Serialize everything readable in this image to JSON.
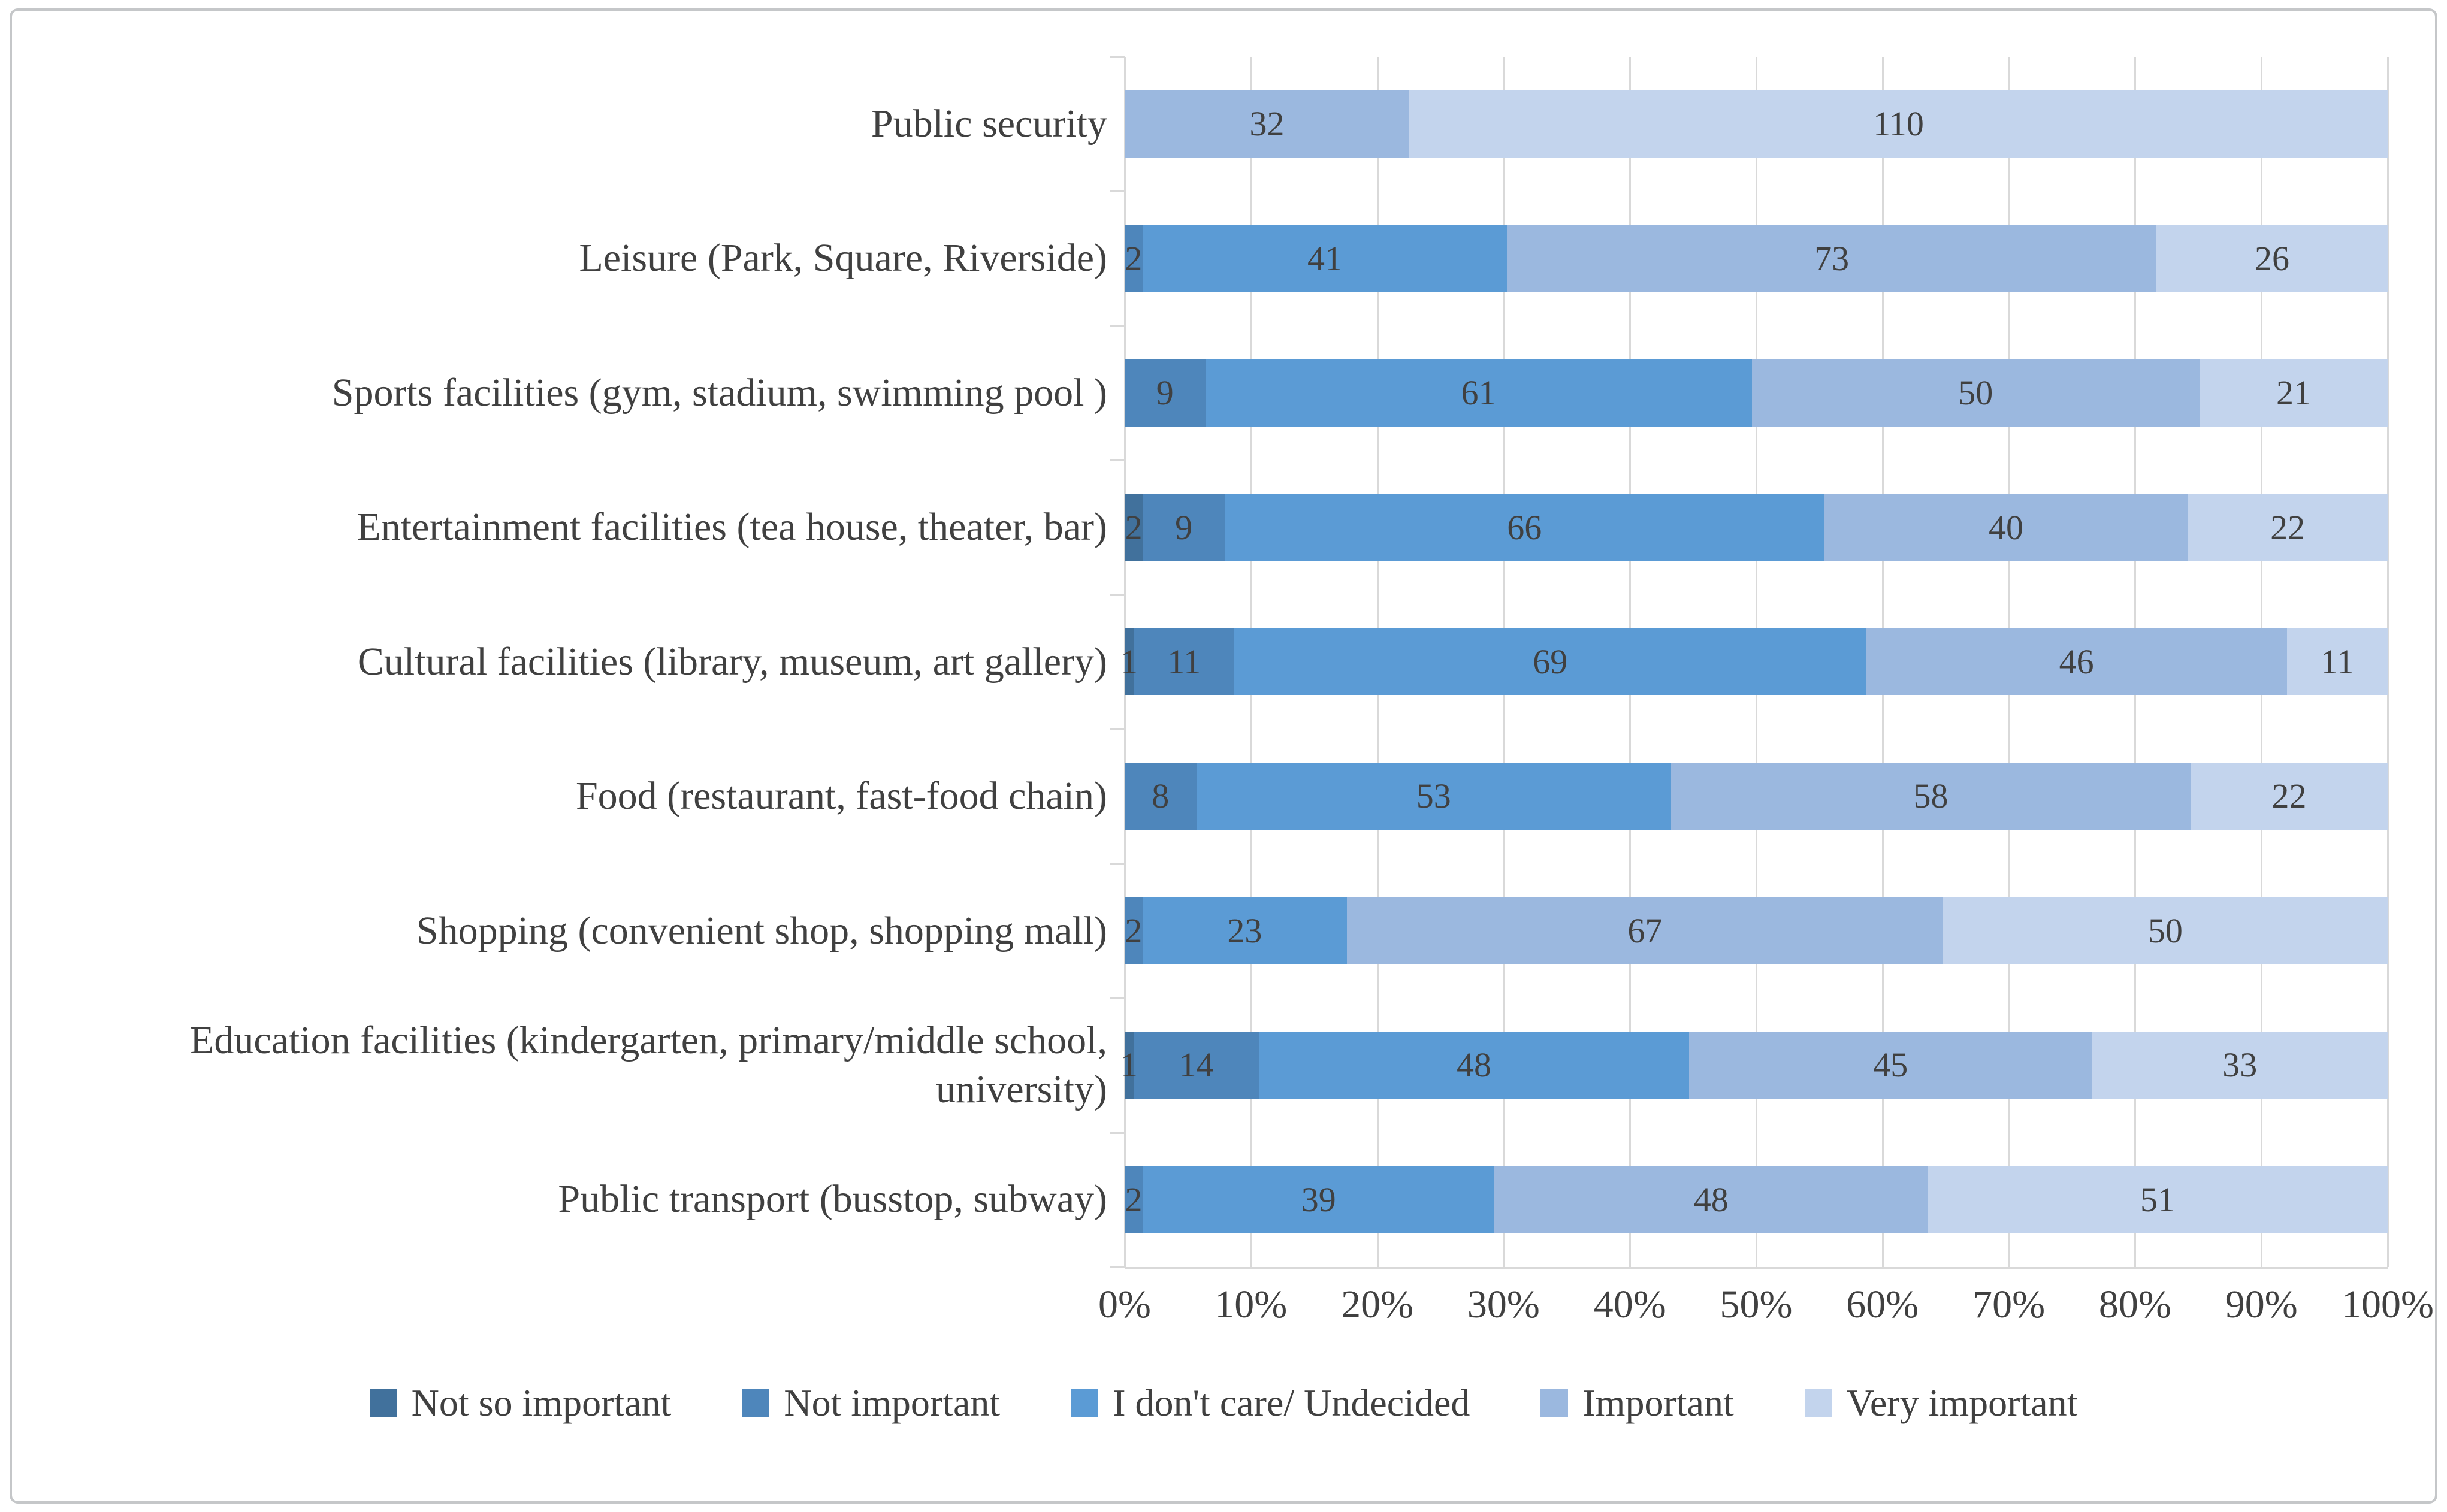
{
  "figure": {
    "background": "#ffffff",
    "border_color": "#c5c7c9",
    "gridline_color": "#d9d9d9",
    "text_color": "#404040"
  },
  "chart_data": {
    "type": "bar",
    "subtype": "horizontal-100%-stacked",
    "title": "",
    "xlabel": "",
    "ylabel": "",
    "legend_position": "bottom",
    "grid": true,
    "x_axis": {
      "range_percent": [
        0,
        100
      ],
      "ticks": [
        "0%",
        "10%",
        "20%",
        "30%",
        "40%",
        "50%",
        "60%",
        "70%",
        "80%",
        "90%",
        "100%"
      ]
    },
    "categories": [
      "Public security",
      "Leisure (Park, Square, Riverside)",
      "Sports facilities (gym, stadium, swimming pool )",
      "Entertainment facilities (tea house, theater, bar)",
      "Cultural facilities (library, museum, art gallery)",
      "Food (restaurant, fast-food chain)",
      "Shopping (convenient shop, shopping mall)",
      "Education facilities (kindergarten, primary/middle school, university)",
      "Public transport (busstop, subway)"
    ],
    "series": [
      {
        "name": "Not so important",
        "color": "#41719C",
        "values": [
          0,
          0,
          0,
          2,
          1,
          0,
          0,
          1,
          0
        ]
      },
      {
        "name": "Not important",
        "color": "#4E86BB",
        "values": [
          0,
          2,
          9,
          9,
          11,
          8,
          2,
          14,
          2
        ]
      },
      {
        "name": "I don't care/ Undecided",
        "color": "#5B9BD5",
        "values": [
          0,
          41,
          61,
          66,
          69,
          53,
          23,
          48,
          39
        ]
      },
      {
        "name": "Important",
        "color": "#9BB8DF",
        "values": [
          32,
          73,
          50,
          40,
          46,
          58,
          67,
          45,
          48
        ]
      },
      {
        "name": "Very important",
        "color": "#C3D4ED",
        "values": [
          110,
          26,
          21,
          22,
          11,
          22,
          50,
          33,
          51
        ]
      }
    ],
    "value_labels": "segment counts shown inside bars; zero values hidden"
  }
}
